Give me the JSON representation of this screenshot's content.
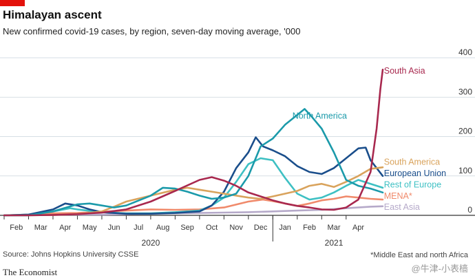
{
  "header": {
    "title": "Himalayan ascent",
    "subtitle": "New confirmed covid-19 cases, by region, seven-day moving average, '000"
  },
  "footer": {
    "source": "Source: Johns Hopkins University CSSE",
    "brand": "The Economist",
    "footnote": "*Middle East and north Africa",
    "watermark": "@牛津-小表樯"
  },
  "chart_data": {
    "type": "line",
    "title": "Himalayan ascent",
    "subtitle": "New confirmed covid-19 cases, by region, seven-day moving average, '000",
    "ylim": [
      0,
      400
    ],
    "yticks": [
      0,
      100,
      200,
      300,
      400
    ],
    "xlim": [
      0,
      15.5
    ],
    "xticks": [
      "Feb",
      "Mar",
      "Apr",
      "May",
      "Jun",
      "Jul",
      "Aug",
      "Sep",
      "Oct",
      "Nov",
      "Dec",
      "Jan",
      "Feb",
      "Mar",
      "Apr"
    ],
    "year_labels": [
      {
        "label": "2020",
        "x": 6
      },
      {
        "label": "2021",
        "x": 13.5
      }
    ],
    "grid": true,
    "series": [
      {
        "name": "East Asia",
        "color": "#b5a9c9",
        "points": [
          [
            0,
            0
          ],
          [
            1,
            1
          ],
          [
            2,
            2
          ],
          [
            3,
            2
          ],
          [
            4,
            2
          ],
          [
            5,
            3
          ],
          [
            6,
            4
          ],
          [
            7,
            5
          ],
          [
            8,
            6
          ],
          [
            9,
            7
          ],
          [
            10,
            8
          ],
          [
            11,
            10
          ],
          [
            12,
            12
          ],
          [
            13,
            14
          ],
          [
            14,
            18
          ],
          [
            15,
            22
          ],
          [
            15.5,
            23
          ]
        ]
      },
      {
        "name": "MENA*",
        "color": "#f08a6b",
        "points": [
          [
            0,
            0
          ],
          [
            1,
            2
          ],
          [
            2,
            5
          ],
          [
            3,
            6
          ],
          [
            4,
            9
          ],
          [
            5,
            12
          ],
          [
            6,
            15
          ],
          [
            7,
            14
          ],
          [
            8,
            15
          ],
          [
            9,
            20
          ],
          [
            10,
            35
          ],
          [
            10.6,
            40
          ],
          [
            11,
            36
          ],
          [
            11.5,
            30
          ],
          [
            12,
            24
          ],
          [
            12.5,
            30
          ],
          [
            13,
            38
          ],
          [
            13.5,
            42
          ],
          [
            14,
            48
          ],
          [
            14.5,
            45
          ],
          [
            15,
            42
          ],
          [
            15.5,
            40
          ]
        ]
      },
      {
        "name": "Rest of Europe",
        "color": "#3ec0c3",
        "points": [
          [
            0,
            0
          ],
          [
            1,
            2
          ],
          [
            2,
            10
          ],
          [
            2.7,
            18
          ],
          [
            3,
            15
          ],
          [
            4,
            8
          ],
          [
            5,
            5
          ],
          [
            6,
            5
          ],
          [
            7,
            8
          ],
          [
            8,
            12
          ],
          [
            8.5,
            25
          ],
          [
            9,
            45
          ],
          [
            9.5,
            85
          ],
          [
            10,
            130
          ],
          [
            10.5,
            145
          ],
          [
            11,
            140
          ],
          [
            11.5,
            95
          ],
          [
            12,
            55
          ],
          [
            12.5,
            40
          ],
          [
            13,
            45
          ],
          [
            13.5,
            58
          ],
          [
            14,
            75
          ],
          [
            14.5,
            90
          ],
          [
            15,
            80
          ],
          [
            15.5,
            70
          ]
        ]
      },
      {
        "name": "European Union",
        "color": "#1a4e8b",
        "points": [
          [
            0,
            0
          ],
          [
            1,
            2
          ],
          [
            2,
            15
          ],
          [
            2.5,
            30
          ],
          [
            3,
            25
          ],
          [
            3.5,
            15
          ],
          [
            4,
            8
          ],
          [
            5,
            4
          ],
          [
            6,
            4
          ],
          [
            7,
            6
          ],
          [
            8,
            10
          ],
          [
            8.5,
            25
          ],
          [
            9,
            60
          ],
          [
            9.5,
            120
          ],
          [
            10,
            160
          ],
          [
            10.3,
            198
          ],
          [
            10.6,
            175
          ],
          [
            11,
            165
          ],
          [
            11.5,
            150
          ],
          [
            12,
            125
          ],
          [
            12.5,
            110
          ],
          [
            13,
            105
          ],
          [
            13.5,
            120
          ],
          [
            14,
            145
          ],
          [
            14.5,
            170
          ],
          [
            14.8,
            172
          ],
          [
            15,
            140
          ],
          [
            15.5,
            100
          ]
        ]
      },
      {
        "name": "South America",
        "color": "#d9a35c",
        "points": [
          [
            0,
            0
          ],
          [
            1,
            0
          ],
          [
            2,
            1
          ],
          [
            3,
            3
          ],
          [
            4,
            10
          ],
          [
            4.5,
            22
          ],
          [
            5,
            35
          ],
          [
            6,
            50
          ],
          [
            7,
            65
          ],
          [
            7.5,
            70
          ],
          [
            8,
            65
          ],
          [
            8.5,
            60
          ],
          [
            9,
            55
          ],
          [
            10,
            45
          ],
          [
            10.5,
            42
          ],
          [
            11,
            48
          ],
          [
            11.5,
            55
          ],
          [
            12,
            62
          ],
          [
            12.5,
            75
          ],
          [
            13,
            80
          ],
          [
            13.5,
            72
          ],
          [
            14,
            85
          ],
          [
            14.5,
            100
          ],
          [
            15,
            118
          ],
          [
            15.5,
            122
          ]
        ]
      },
      {
        "name": "North America",
        "color": "#1b9aaa",
        "points": [
          [
            0,
            0
          ],
          [
            1,
            0
          ],
          [
            2,
            10
          ],
          [
            3,
            28
          ],
          [
            3.5,
            30
          ],
          [
            4,
            25
          ],
          [
            4.5,
            20
          ],
          [
            5,
            25
          ],
          [
            6,
            50
          ],
          [
            6.5,
            70
          ],
          [
            7,
            68
          ],
          [
            7.5,
            60
          ],
          [
            8,
            50
          ],
          [
            8.5,
            42
          ],
          [
            9,
            45
          ],
          [
            9.5,
            55
          ],
          [
            10,
            100
          ],
          [
            10.5,
            175
          ],
          [
            11,
            195
          ],
          [
            11.5,
            230
          ],
          [
            12,
            255
          ],
          [
            12.3,
            270
          ],
          [
            12.6,
            250
          ],
          [
            13,
            220
          ],
          [
            13.5,
            160
          ],
          [
            14,
            90
          ],
          [
            14.5,
            75
          ],
          [
            15,
            68
          ],
          [
            15.5,
            58
          ]
        ]
      },
      {
        "name": "South Asia",
        "color": "#a8284e",
        "points": [
          [
            0,
            0
          ],
          [
            1,
            0
          ],
          [
            2,
            1
          ],
          [
            3,
            3
          ],
          [
            4,
            7
          ],
          [
            5,
            15
          ],
          [
            6,
            35
          ],
          [
            7,
            62
          ],
          [
            8,
            90
          ],
          [
            8.5,
            97
          ],
          [
            9,
            88
          ],
          [
            9.5,
            75
          ],
          [
            10,
            58
          ],
          [
            10.5,
            48
          ],
          [
            11,
            38
          ],
          [
            11.5,
            30
          ],
          [
            12,
            24
          ],
          [
            12.5,
            20
          ],
          [
            13,
            15
          ],
          [
            13.5,
            14
          ],
          [
            14,
            20
          ],
          [
            14.5,
            40
          ],
          [
            15,
            110
          ],
          [
            15.25,
            220
          ],
          [
            15.4,
            320
          ],
          [
            15.5,
            370
          ]
        ]
      }
    ],
    "labels": [
      {
        "text": "South Asia",
        "series": "South Asia",
        "x": 15.55,
        "y": 360
      },
      {
        "text": "North America",
        "series": "North America",
        "x": 11.8,
        "y": 245
      },
      {
        "text": "South America",
        "series": "South America",
        "x": 15.55,
        "y": 128
      },
      {
        "text": "European Union",
        "series": "European Union",
        "x": 15.55,
        "y": 100
      },
      {
        "text": "Rest of Europe",
        "series": "Rest of Europe",
        "x": 15.55,
        "y": 71
      },
      {
        "text": "MENA*",
        "series": "MENA*",
        "x": 15.55,
        "y": 42
      },
      {
        "text": "East Asia",
        "series": "East Asia",
        "x": 15.55,
        "y": 14
      }
    ]
  }
}
